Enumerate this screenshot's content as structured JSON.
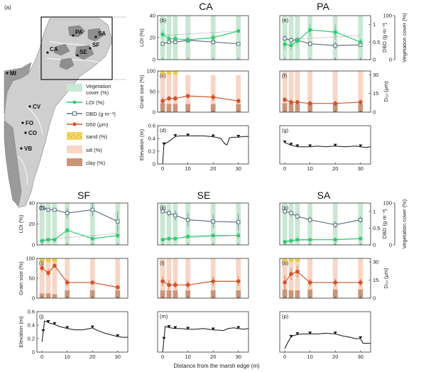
{
  "figure": {
    "x_axis_label": "Distance from the marsh edge (m)",
    "y_labels": {
      "loi": "LOI (%)",
      "grain": "Grain size (%)",
      "elev": "Elevation (m)",
      "dbd": "DBD (g m⁻³)",
      "veg": "Vegetation cover (%)",
      "d50": "D₅₀ (μm)"
    },
    "x_ticks": [
      "0",
      "10",
      "20",
      "30"
    ],
    "loi_ticks": [
      "0",
      "20",
      "40"
    ],
    "grain_ticks": [
      "0",
      "50",
      "100"
    ],
    "elev_ticks": [
      "0",
      "0.2",
      "0.4",
      "0.6"
    ],
    "dbd_ticks": [
      "0",
      "0.5",
      "1"
    ],
    "d50_ticks": [
      "0",
      "15",
      "30"
    ],
    "veg_ticks": [
      "0",
      "100"
    ],
    "colors": {
      "veg": "#c9e8d3",
      "loi": "#2ecc71",
      "dbd": "#5e7380",
      "d50": "#d0542a",
      "sand": "#f4d35e",
      "silt": "#f8d5c4",
      "clay": "#c99579"
    }
  },
  "legend": {
    "items": [
      {
        "label": "Vegetation cover (%)",
        "symbol": "veg-box"
      },
      {
        "label": "LOI (%)",
        "symbol": "loi-line"
      },
      {
        "label": "DBD (g m⁻³)",
        "symbol": "dbd-line"
      },
      {
        "label": "D50 (μm)",
        "symbol": "d50-line"
      },
      {
        "label": "sand (%)",
        "symbol": "sand-box"
      },
      {
        "label": "silt (%)",
        "symbol": "silt-box"
      },
      {
        "label": "clay (%)",
        "symbol": "clay-box"
      }
    ]
  },
  "map": {
    "panel_letter": "(a)",
    "left_sites": [
      "MI",
      "CV",
      "FO",
      "CO",
      "VB"
    ],
    "inset_sites": [
      "PA",
      "SA",
      "CA",
      "SE",
      "SF"
    ]
  },
  "chart_data": [
    {
      "type": "line",
      "site": "CA",
      "letters": [
        "(b)",
        "(c)",
        "(d)"
      ],
      "x": [
        0,
        2.5,
        5,
        10,
        20,
        30
      ],
      "series": [
        {
          "name": "LOI (%)",
          "values": [
            23,
            19,
            19,
            18,
            20,
            26
          ],
          "err": [
            4,
            3,
            3,
            3,
            4,
            2
          ]
        },
        {
          "name": "DBD (g m⁻³)",
          "values": [
            0.45,
            0.5,
            0.5,
            0.55,
            0.5,
            0.45
          ],
          "err": [
            0.07,
            0.06,
            0.06,
            0.08,
            0.08,
            0.05
          ]
        },
        {
          "name": "D50 (μm)",
          "values": [
            9,
            11,
            11,
            13,
            12,
            9
          ],
          "err": [
            3,
            2,
            2,
            2,
            3,
            2
          ]
        }
      ],
      "loi_trend": [
        22,
        26
      ],
      "vegetation_x": [
        0,
        2.5,
        5,
        10,
        20,
        30
      ],
      "sand": [
        10,
        10,
        10,
        0,
        0,
        0
      ],
      "silt": [
        68,
        70,
        70,
        70,
        70,
        70
      ],
      "clay": [
        22,
        20,
        20,
        20,
        20,
        20
      ],
      "elevation": {
        "x": [
          0,
          0.5,
          1,
          2,
          3,
          4,
          5,
          7,
          10,
          13,
          16,
          19,
          21,
          23,
          24.5,
          25.5,
          26.5,
          28,
          30,
          32,
          34
        ],
        "y": [
          0,
          0.3,
          0.32,
          0.34,
          0.37,
          0.4,
          0.43,
          0.44,
          0.44,
          0.44,
          0.44,
          0.43,
          0.42,
          0.4,
          0.32,
          0.3,
          0.41,
          0.42,
          0.42,
          0.43,
          0.43
        ]
      },
      "markers": [
        0.5,
        5,
        10,
        20,
        30
      ]
    },
    {
      "type": "line",
      "site": "PA",
      "letters": [
        "(e)",
        "(f)",
        "(g)"
      ],
      "x": [
        0,
        2.5,
        5,
        10,
        20,
        30
      ],
      "series": [
        {
          "name": "LOI (%)",
          "values": [
            14,
            13,
            17,
            27,
            25,
            16
          ],
          "err": [
            5,
            4,
            4,
            6,
            7,
            3
          ]
        },
        {
          "name": "DBD (g m⁻³)",
          "values": [
            0.6,
            0.55,
            0.55,
            0.45,
            0.4,
            0.42
          ],
          "err": [
            0.1,
            0.1,
            0.08,
            0.08,
            0.1,
            0.06
          ]
        },
        {
          "name": "D50 (μm)",
          "values": [
            10,
            8,
            8,
            7,
            7,
            8
          ],
          "err": [
            2,
            2,
            2,
            2,
            2,
            2
          ]
        }
      ],
      "loi_trend": [
        18,
        22
      ],
      "vegetation_x": [
        0,
        2.5,
        5,
        10,
        20,
        30
      ],
      "sand": [
        0,
        0,
        0,
        0,
        0,
        0
      ],
      "silt": [
        78,
        78,
        80,
        80,
        80,
        80
      ],
      "clay": [
        22,
        22,
        20,
        20,
        20,
        20
      ],
      "elevation": {
        "x": [
          0,
          1,
          2,
          3,
          4,
          5,
          7,
          10,
          13,
          16,
          20,
          24,
          28,
          30,
          32,
          34
        ],
        "y": [
          0.33,
          0.32,
          0.3,
          0.29,
          0.28,
          0.27,
          0.27,
          0.27,
          0.28,
          0.27,
          0.28,
          0.27,
          0.28,
          0.27,
          0.26,
          0.27
        ]
      },
      "markers": [
        0,
        2.5,
        5,
        10,
        20,
        30
      ]
    },
    {
      "type": "line",
      "site": "SF",
      "letters": [
        "(h)",
        "(i)",
        "(j)"
      ],
      "x": [
        0,
        2.5,
        5,
        10,
        20,
        30
      ],
      "series": [
        {
          "name": "LOI (%)",
          "values": [
            4,
            5,
            5,
            14,
            6,
            9
          ],
          "err": [
            1,
            1,
            1,
            3,
            2,
            3
          ]
        },
        {
          "name": "DBD (g m⁻³)",
          "values": [
            1.1,
            1.05,
            1.05,
            0.95,
            1.05,
            0.7
          ],
          "err": [
            0.05,
            0.05,
            0.05,
            0.15,
            0.2,
            0.3
          ]
        },
        {
          "name": "D50 (μm)",
          "values": [
            25,
            21,
            27,
            13,
            13,
            9
          ],
          "err": [
            3,
            3,
            2,
            3,
            2,
            2
          ]
        }
      ],
      "loi_trend": [
        5,
        11
      ],
      "vegetation_x": [
        0,
        2.5,
        5,
        10,
        20,
        30
      ],
      "sand": [
        10,
        10,
        10,
        0,
        0,
        0
      ],
      "silt": [
        78,
        78,
        80,
        80,
        80,
        80
      ],
      "clay": [
        12,
        12,
        10,
        20,
        20,
        20
      ],
      "elevation": {
        "x": [
          0,
          1,
          2,
          3,
          5,
          7,
          10,
          13,
          16,
          19,
          20,
          22,
          25,
          28,
          30,
          32,
          34
        ],
        "y": [
          0.15,
          0.46,
          0.45,
          0.43,
          0.41,
          0.38,
          0.35,
          0.33,
          0.33,
          0.35,
          0.36,
          0.32,
          0.28,
          0.25,
          0.23,
          0.22,
          0.22
        ]
      },
      "markers": [
        0.5,
        2.5,
        5,
        10,
        20,
        30
      ]
    },
    {
      "type": "line",
      "site": "SE",
      "letters": [
        "(k)",
        "(l)",
        "(m)"
      ],
      "x": [
        0,
        2.5,
        5,
        10,
        20,
        30
      ],
      "series": [
        {
          "name": "LOI (%)",
          "values": [
            5,
            6,
            6,
            8,
            9,
            9
          ],
          "err": [
            1,
            1,
            1,
            2,
            2,
            3
          ]
        },
        {
          "name": "DBD (g m⁻³)",
          "values": [
            1.0,
            0.95,
            0.88,
            0.75,
            0.7,
            0.68
          ],
          "err": [
            0.05,
            0.1,
            0.15,
            0.2,
            0.2,
            0.25
          ]
        },
        {
          "name": "D50 (μm)",
          "values": [
            14,
            11,
            11,
            11,
            14,
            14
          ],
          "err": [
            4,
            4,
            3,
            3,
            4,
            4
          ]
        }
      ],
      "loi_trend": [
        6,
        9
      ],
      "vegetation_x": [
        0,
        2.5,
        5,
        10,
        20,
        30
      ],
      "sand": [
        0,
        0,
        0,
        0,
        0,
        0
      ],
      "silt": [
        80,
        80,
        80,
        80,
        80,
        80
      ],
      "clay": [
        20,
        20,
        20,
        20,
        20,
        20
      ],
      "elevation": {
        "x": [
          0,
          1,
          2,
          3,
          5,
          7,
          10,
          13,
          16,
          20,
          24,
          26,
          28,
          30,
          32,
          34
        ],
        "y": [
          0,
          0.38,
          0.37,
          0.36,
          0.35,
          0.35,
          0.34,
          0.34,
          0.35,
          0.33,
          0.32,
          0.35,
          0.36,
          0.35,
          0.34,
          0.35
        ]
      },
      "markers": [
        0.5,
        2.5,
        5,
        10,
        20,
        30
      ]
    },
    {
      "type": "line",
      "site": "SA",
      "letters": [
        "(n)",
        "(o)",
        "(p)"
      ],
      "x": [
        0,
        2.5,
        5,
        10,
        20,
        30
      ],
      "series": [
        {
          "name": "LOI (%)",
          "values": [
            3,
            4,
            5,
            5,
            5,
            6
          ],
          "err": [
            1,
            1,
            1,
            1,
            1,
            1
          ]
        },
        {
          "name": "DBD (g m⁻³)",
          "values": [
            1.0,
            0.95,
            0.85,
            0.75,
            0.6,
            0.75
          ],
          "err": [
            0.08,
            0.1,
            0.1,
            0.1,
            0.1,
            0.1
          ]
        },
        {
          "name": "D50 (μm)",
          "values": [
            13,
            20,
            22,
            13,
            13,
            13
          ],
          "err": [
            6,
            5,
            5,
            3,
            3,
            3
          ]
        }
      ],
      "loi_trend": [
        4,
        6
      ],
      "vegetation_x": [
        0,
        2.5,
        5,
        10,
        20,
        30
      ],
      "sand": [
        10,
        10,
        10,
        0,
        0,
        0
      ],
      "silt": [
        68,
        70,
        70,
        78,
        78,
        78
      ],
      "clay": [
        22,
        20,
        20,
        22,
        22,
        22
      ],
      "elevation": {
        "x": [
          0,
          1,
          2,
          3,
          5,
          7,
          10,
          13,
          16,
          20,
          23,
          26,
          28,
          30,
          31,
          32,
          34
        ],
        "y": [
          0.05,
          0.13,
          0.2,
          0.24,
          0.26,
          0.27,
          0.27,
          0.27,
          0.28,
          0.27,
          0.24,
          0.22,
          0.2,
          0.2,
          0.13,
          0.13,
          0.13
        ]
      },
      "markers": [
        2.5,
        5,
        10,
        20,
        30
      ]
    }
  ]
}
